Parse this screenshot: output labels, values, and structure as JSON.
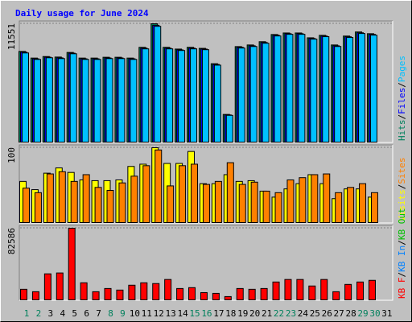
{
  "title": "Daily usage for June 2024",
  "legend_separator": "/",
  "days": {
    "categories": [
      1,
      2,
      3,
      4,
      5,
      6,
      7,
      8,
      9,
      10,
      11,
      12,
      13,
      14,
      15,
      16,
      17,
      18,
      19,
      20,
      21,
      22,
      23,
      24,
      25,
      26,
      27,
      28,
      29,
      30,
      31
    ],
    "color": "#000000",
    "weekend": [
      1,
      2,
      8,
      9,
      15,
      16,
      22,
      23,
      29,
      30
    ],
    "weekend_color": "#00805c"
  },
  "chart_data": [
    {
      "type": "bar",
      "ylim": [
        0,
        11551
      ],
      "yticks": [
        11551
      ],
      "grid": true,
      "series": [
        {
          "name": "Hits",
          "color": "#00805c",
          "values": [
            8850,
            8200,
            8350,
            8300,
            8750,
            8200,
            8200,
            8280,
            8280,
            8200,
            9250,
            11551,
            9250,
            9080,
            9250,
            9150,
            7650,
            2700,
            9320,
            9480,
            9800,
            10500,
            10650,
            10650,
            10180,
            10420,
            9480,
            10350,
            10750,
            10580,
            0
          ]
        },
        {
          "name": "Files",
          "color": "#0000ff",
          "values": [
            8780,
            8130,
            8290,
            8220,
            8680,
            8130,
            8130,
            8210,
            8210,
            8130,
            9170,
            11400,
            9170,
            9000,
            9170,
            9080,
            7580,
            2650,
            9250,
            9400,
            9720,
            10430,
            10580,
            10580,
            10110,
            10350,
            9400,
            10280,
            10670,
            10510,
            0
          ]
        },
        {
          "name": "Pages",
          "color": "#00c0ff",
          "values": [
            8700,
            8070,
            8230,
            8150,
            8620,
            8070,
            8070,
            8150,
            8150,
            8070,
            9100,
            11300,
            9100,
            8940,
            9100,
            9020,
            7510,
            2610,
            9180,
            9330,
            9650,
            10360,
            10520,
            10520,
            10050,
            10290,
            9330,
            10210,
            10600,
            10440,
            0
          ]
        }
      ]
    },
    {
      "type": "bar",
      "ylim": [
        0,
        100
      ],
      "yticks": [
        100
      ],
      "grid": true,
      "series": [
        {
          "name": "Visits",
          "color": "#ffff00",
          "values": [
            55,
            44,
            66,
            73,
            67,
            57,
            56,
            56,
            57,
            75,
            78,
            100,
            79,
            79,
            95,
            52,
            52,
            64,
            55,
            56,
            42,
            34,
            45,
            52,
            64,
            52,
            32,
            45,
            45,
            34,
            0
          ]
        },
        {
          "name": "Sites",
          "color": "#ff8000",
          "values": [
            46,
            40,
            65,
            68,
            55,
            64,
            47,
            43,
            53,
            62,
            76,
            97,
            49,
            76,
            78,
            51,
            55,
            80,
            51,
            54,
            42,
            40,
            57,
            60,
            64,
            65,
            40,
            47,
            52,
            40,
            0
          ]
        }
      ]
    },
    {
      "type": "bar",
      "ylim": [
        0,
        82586
      ],
      "yticks": [
        82586
      ],
      "grid": true,
      "series": [
        {
          "name": "KB F",
          "color": "#ff0000",
          "values": [
            12200,
            9400,
            30000,
            31000,
            82586,
            19700,
            9400,
            13100,
            11300,
            16900,
            19700,
            18800,
            23500,
            13100,
            14100,
            8400,
            7500,
            3800,
            13100,
            12200,
            13100,
            20600,
            23500,
            23500,
            16000,
            23500,
            9400,
            17800,
            20600,
            22500,
            0
          ]
        },
        {
          "name": "KB In",
          "color": "#0080ff"
        },
        {
          "name": "KB Out",
          "color": "#00c000"
        }
      ]
    }
  ]
}
